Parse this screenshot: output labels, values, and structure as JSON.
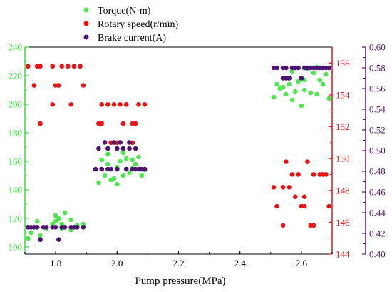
{
  "chart_data": {
    "type": "scatter",
    "xlabel": "Pump pressure(MPa)",
    "xlim": [
      1.7,
      2.7
    ],
    "x_ticks": [
      "1.8",
      "2.0",
      "2.2",
      "2.4",
      "2.6"
    ],
    "axes": {
      "left": {
        "lim": [
          95,
          240
        ],
        "ticks": [
          "100",
          "120",
          "140",
          "160",
          "180",
          "200",
          "220",
          "240"
        ],
        "color": "#2ee52e"
      },
      "right1": {
        "lim": [
          144,
          157
        ],
        "ticks": [
          "144",
          "146",
          "148",
          "150",
          "152",
          "154",
          "156"
        ],
        "color": "#ee1111"
      },
      "right2": {
        "lim": [
          0.4,
          0.6
        ],
        "ticks": [
          "0.40",
          "0.42",
          "0.44",
          "0.46",
          "0.48",
          "0.50",
          "0.52",
          "0.54",
          "0.56",
          "0.58",
          "0.60"
        ],
        "color": "#5a1a6e"
      }
    },
    "legend_placement": "top-center",
    "series": [
      {
        "name": "Torque(N·m)",
        "axis": "left",
        "color": "#4de84d",
        "points": [
          [
            1.71,
            106
          ],
          [
            1.72,
            110
          ],
          [
            1.74,
            118
          ],
          [
            1.75,
            108
          ],
          [
            1.77,
            113
          ],
          [
            1.79,
            116
          ],
          [
            1.8,
            122
          ],
          [
            1.8,
            118
          ],
          [
            1.81,
            120
          ],
          [
            1.82,
            116
          ],
          [
            1.82,
            113
          ],
          [
            1.83,
            124
          ],
          [
            1.85,
            119
          ],
          [
            1.85,
            112
          ],
          [
            1.87,
            115
          ],
          [
            1.89,
            116
          ],
          [
            1.94,
            145
          ],
          [
            1.95,
            161
          ],
          [
            1.96,
            150
          ],
          [
            1.97,
            158
          ],
          [
            1.98,
            147
          ],
          [
            1.99,
            148
          ],
          [
            2.0,
            144
          ],
          [
            2.0,
            156
          ],
          [
            2.01,
            160
          ],
          [
            2.02,
            150
          ],
          [
            2.03,
            162
          ],
          [
            2.04,
            152
          ],
          [
            2.05,
            155
          ],
          [
            2.05,
            161
          ],
          [
            2.06,
            158
          ],
          [
            2.07,
            163
          ],
          [
            2.08,
            150
          ],
          [
            2.09,
            154
          ],
          [
            2.02,
            166
          ],
          [
            1.97,
            165
          ],
          [
            2.51,
            205
          ],
          [
            2.52,
            214
          ],
          [
            2.53,
            211
          ],
          [
            2.54,
            212
          ],
          [
            2.55,
            207
          ],
          [
            2.56,
            214
          ],
          [
            2.57,
            203
          ],
          [
            2.58,
            209
          ],
          [
            2.59,
            216
          ],
          [
            2.6,
            199
          ],
          [
            2.61,
            210
          ],
          [
            2.61,
            217
          ],
          [
            2.63,
            208
          ],
          [
            2.64,
            222
          ],
          [
            2.65,
            207
          ],
          [
            2.66,
            217
          ],
          [
            2.67,
            214
          ],
          [
            2.68,
            221
          ],
          [
            2.69,
            204
          ],
          [
            2.57,
            223
          ],
          [
            2.62,
            225
          ],
          [
            2.65,
            226
          ]
        ]
      },
      {
        "name": "Rotary speed(r/min)",
        "axis": "right1",
        "color": "#ee1111",
        "points": [
          [
            1.71,
            155.8
          ],
          [
            1.73,
            154.6
          ],
          [
            1.74,
            155.8
          ],
          [
            1.75,
            155.8
          ],
          [
            1.75,
            152.2
          ],
          [
            1.79,
            155.8
          ],
          [
            1.79,
            153.4
          ],
          [
            1.8,
            154.6
          ],
          [
            1.81,
            154.6
          ],
          [
            1.82,
            155.8
          ],
          [
            1.84,
            155.8
          ],
          [
            1.85,
            153.4
          ],
          [
            1.86,
            155.8
          ],
          [
            1.88,
            155.8
          ],
          [
            1.89,
            154.6
          ],
          [
            1.94,
            152.2
          ],
          [
            1.95,
            153.4
          ],
          [
            1.95,
            152.2
          ],
          [
            1.97,
            153.4
          ],
          [
            1.98,
            151.0
          ],
          [
            1.99,
            153.4
          ],
          [
            2.0,
            151.0
          ],
          [
            2.01,
            153.4
          ],
          [
            2.02,
            152.2
          ],
          [
            2.03,
            153.4
          ],
          [
            2.05,
            152.2
          ],
          [
            2.05,
            151.0
          ],
          [
            2.06,
            152.2
          ],
          [
            2.07,
            153.4
          ],
          [
            2.09,
            153.4
          ],
          [
            2.51,
            148.2
          ],
          [
            2.52,
            147.0
          ],
          [
            2.54,
            145.8
          ],
          [
            2.54,
            148.2
          ],
          [
            2.55,
            149.8
          ],
          [
            2.56,
            148.2
          ],
          [
            2.57,
            149.0
          ],
          [
            2.58,
            147.6
          ],
          [
            2.59,
            149.0
          ],
          [
            2.6,
            147.0
          ],
          [
            2.61,
            147.6
          ],
          [
            2.61,
            147.0
          ],
          [
            2.62,
            149.8
          ],
          [
            2.63,
            145.8
          ],
          [
            2.64,
            149.0
          ],
          [
            2.64,
            145.8
          ],
          [
            2.66,
            149.0
          ],
          [
            2.67,
            149.0
          ],
          [
            2.68,
            149.0
          ],
          [
            2.69,
            147.0
          ]
        ]
      },
      {
        "name": "Brake current(A)",
        "axis": "right2",
        "color": "#4a1470",
        "points": [
          [
            1.71,
            0.426
          ],
          [
            1.72,
            0.426
          ],
          [
            1.73,
            0.426
          ],
          [
            1.74,
            0.426
          ],
          [
            1.75,
            0.414
          ],
          [
            1.76,
            0.426
          ],
          [
            1.77,
            0.426
          ],
          [
            1.79,
            0.426
          ],
          [
            1.8,
            0.426
          ],
          [
            1.81,
            0.414
          ],
          [
            1.82,
            0.426
          ],
          [
            1.83,
            0.426
          ],
          [
            1.85,
            0.426
          ],
          [
            1.86,
            0.426
          ],
          [
            1.87,
            0.426
          ],
          [
            1.89,
            0.426
          ],
          [
            1.93,
            0.482
          ],
          [
            1.94,
            0.502
          ],
          [
            1.95,
            0.482
          ],
          [
            1.96,
            0.508
          ],
          [
            1.97,
            0.502
          ],
          [
            1.97,
            0.482
          ],
          [
            1.98,
            0.482
          ],
          [
            1.99,
            0.508
          ],
          [
            2.0,
            0.502
          ],
          [
            2.0,
            0.482
          ],
          [
            2.01,
            0.508
          ],
          [
            2.02,
            0.502
          ],
          [
            2.03,
            0.482
          ],
          [
            2.04,
            0.508
          ],
          [
            2.04,
            0.502
          ],
          [
            2.05,
            0.482
          ],
          [
            2.06,
            0.502
          ],
          [
            2.06,
            0.482
          ],
          [
            2.07,
            0.482
          ],
          [
            2.08,
            0.482
          ],
          [
            2.09,
            0.482
          ],
          [
            2.51,
            0.58
          ],
          [
            2.52,
            0.58
          ],
          [
            2.54,
            0.58
          ],
          [
            2.54,
            0.57
          ],
          [
            2.55,
            0.57
          ],
          [
            2.55,
            0.58
          ],
          [
            2.56,
            0.57
          ],
          [
            2.57,
            0.58
          ],
          [
            2.58,
            0.58
          ],
          [
            2.59,
            0.58
          ],
          [
            2.6,
            0.57
          ],
          [
            2.61,
            0.58
          ],
          [
            2.62,
            0.58
          ],
          [
            2.63,
            0.58
          ],
          [
            2.64,
            0.58
          ],
          [
            2.65,
            0.58
          ],
          [
            2.66,
            0.58
          ],
          [
            2.67,
            0.58
          ],
          [
            2.68,
            0.58
          ],
          [
            2.69,
            0.58
          ]
        ]
      }
    ]
  }
}
